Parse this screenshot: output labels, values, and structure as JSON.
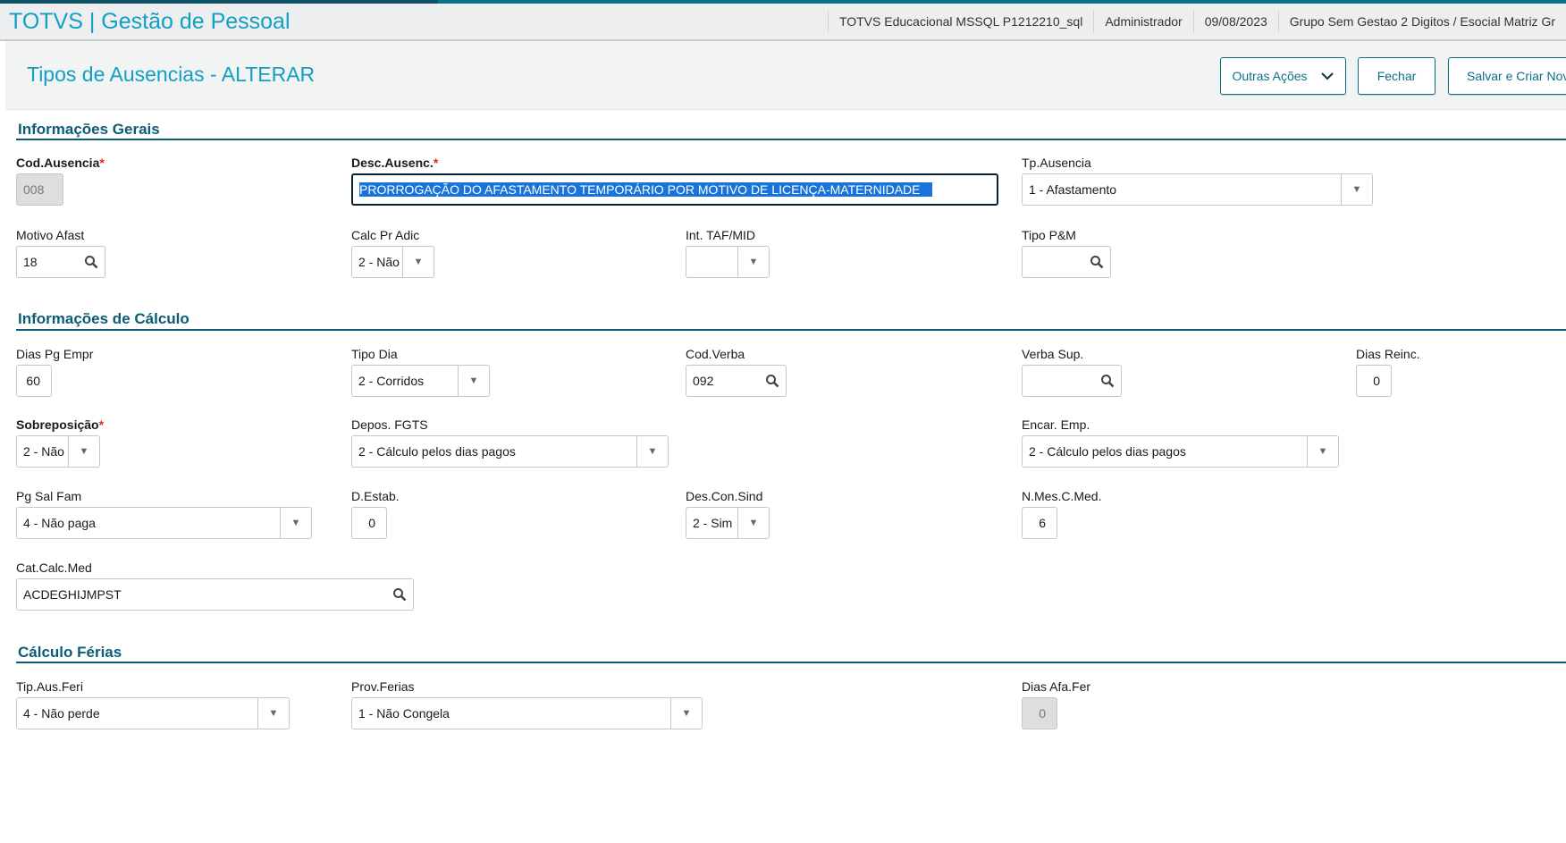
{
  "app": {
    "title": "TOTVS | Gestão de Pessoal",
    "info": [
      "TOTVS Educacional MSSQL P1212210_sql",
      "Administrador",
      "09/08/2023",
      "Grupo Sem Gestao 2 Digitos / Esocial Matriz Gr"
    ]
  },
  "page": {
    "title": "Tipos de Ausencias - ALTERAR",
    "buttons": {
      "other_actions": "Outras Ações",
      "close": "Fechar",
      "save_new": "Salvar e Criar Nov"
    }
  },
  "sections": [
    "Informações Gerais",
    "Informações de Cálculo",
    "Cálculo Férias"
  ],
  "fields": [
    {
      "label": "Cod.Ausencia",
      "value": "008",
      "type": "text",
      "required": true,
      "disabled": true
    },
    {
      "label": "Desc.Ausenc.",
      "value": "PRORROGAÇÃO DO AFASTAMENTO TEMPORÁRIO POR MOTIVO DE LICENÇA-MATERNIDADE",
      "type": "text",
      "required": true,
      "focused": true
    },
    {
      "label": "Tp.Ausencia",
      "value": "1 - Afastamento",
      "type": "select"
    },
    {
      "label": "Motivo Afast",
      "value": "18",
      "type": "lookup"
    },
    {
      "label": "Calc Pr Adic",
      "value": "2 - Não",
      "type": "select"
    },
    {
      "label": "Int. TAF/MID",
      "value": "",
      "type": "select"
    },
    {
      "label": "Tipo P&M",
      "value": "",
      "type": "lookup"
    },
    {
      "label": "Dias Pg Empr",
      "value": "60",
      "type": "number"
    },
    {
      "label": "Tipo Dia",
      "value": "2 - Corridos",
      "type": "select"
    },
    {
      "label": "Cod.Verba",
      "value": "092",
      "type": "lookup"
    },
    {
      "label": "Verba Sup.",
      "value": "",
      "type": "lookup"
    },
    {
      "label": "Dias Reinc.",
      "value": "0",
      "type": "number"
    },
    {
      "label": "Sobreposição",
      "value": "2 - Não",
      "type": "select",
      "required": true
    },
    {
      "label": "Depos. FGTS",
      "value": "2 - Cálculo pelos dias pagos",
      "type": "select"
    },
    {
      "label": "Encar. Emp.",
      "value": "2 - Cálculo pelos dias pagos",
      "type": "select"
    },
    {
      "label": "Pg Sal Fam",
      "value": "4 - Não paga",
      "type": "select"
    },
    {
      "label": "D.Estab.",
      "value": "0",
      "type": "number"
    },
    {
      "label": "Des.Con.Sind",
      "value": "2 - Sim",
      "type": "select"
    },
    {
      "label": "N.Mes.C.Med.",
      "value": "6",
      "type": "number"
    },
    {
      "label": "Cat.Calc.Med",
      "value": "ACDEGHIJMPST",
      "type": "lookup"
    },
    {
      "label": "Tip.Aus.Feri",
      "value": "4 - Não perde",
      "type": "select"
    },
    {
      "label": "Prov.Ferias",
      "value": "1 - Não Congela",
      "type": "select"
    },
    {
      "label": "Dias Afa.Fer",
      "value": "0",
      "type": "number",
      "disabled": true
    }
  ],
  "colors": {
    "accent": "#139fc4",
    "section": "#0b5c76",
    "selection": "#1a73d9"
  }
}
